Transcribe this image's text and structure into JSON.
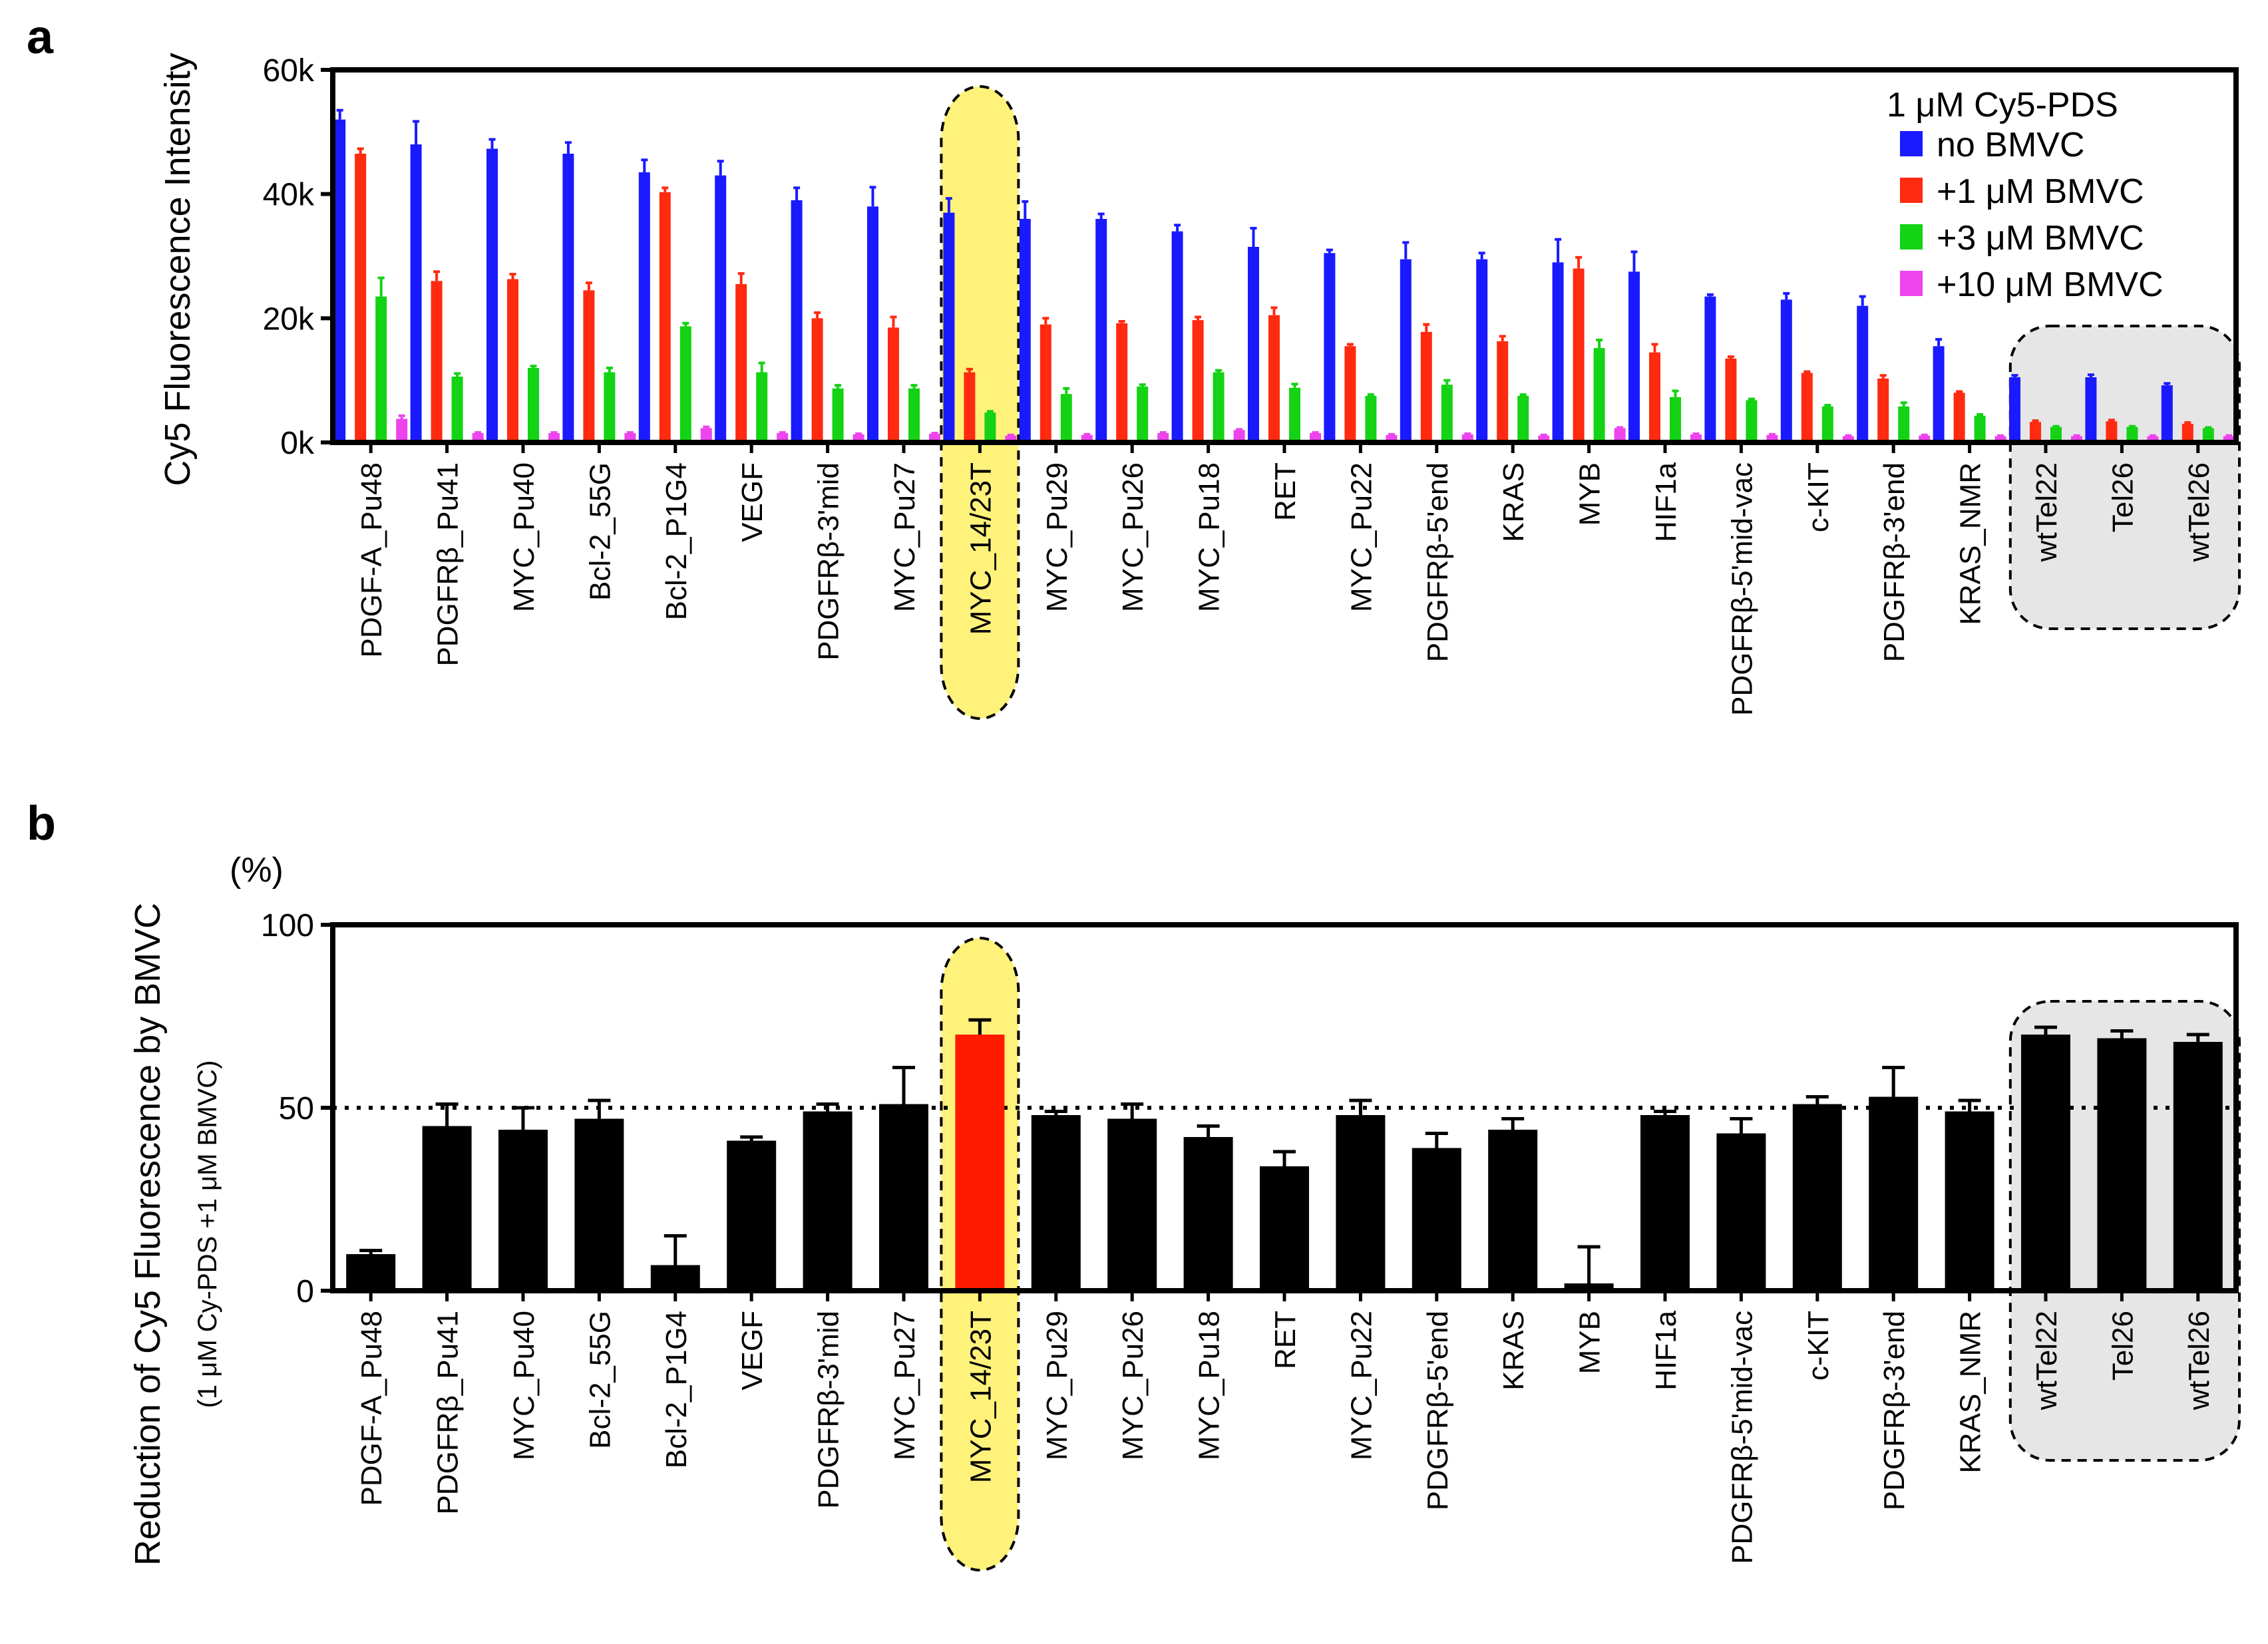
{
  "chart_data": [
    {
      "panel": "a",
      "type": "bar",
      "title": "",
      "ylabel": "Cy5 Fluorescence Intensity",
      "xlabel": "",
      "ylim": [
        0,
        60000
      ],
      "yticks": [
        0,
        20000,
        40000,
        60000
      ],
      "ytick_labels": [
        "0k",
        "20k",
        "40k",
        "60k"
      ],
      "legend_title": "1 μM Cy5-PDS",
      "legend_position": "top-right",
      "categories": [
        "PDGF-A_Pu48",
        "PDGFRβ_Pu41",
        "MYC_Pu40",
        "Bcl-2_55G",
        "Bcl-2_P1G4",
        "VEGF",
        "PDGFRβ-3'mid",
        "MYC_Pu27",
        "MYC_14/23T",
        "MYC_Pu29",
        "MYC_Pu26",
        "MYC_Pu18",
        "RET",
        "MYC_Pu22",
        "PDGFRβ-5'end",
        "KRAS",
        "MYB",
        "HIF1a",
        "PDGFRβ-5'mid-vac",
        "c-KIT",
        "PDGFRβ-3'end",
        "KRAS_NMR",
        "wtTel22",
        "Tel26",
        "wtTel26"
      ],
      "highlight_category": "MYC_14/23T",
      "grouped_categories": [
        "wtTel22",
        "Tel26",
        "wtTel26"
      ],
      "series": [
        {
          "name": "no BMVC",
          "color": "#1a1aff",
          "values": [
            52000,
            48000,
            47300,
            46500,
            43500,
            43000,
            39000,
            38000,
            37000,
            36000,
            36000,
            34000,
            31500,
            30500,
            29500,
            29500,
            29000,
            27500,
            23500,
            23000,
            22000,
            15500,
            10500,
            10500,
            9200
          ],
          "errors": [
            1500,
            3700,
            1500,
            1800,
            2000,
            2300,
            2000,
            3100,
            2300,
            2800,
            800,
            1000,
            3000,
            500,
            2700,
            1000,
            3700,
            3200,
            300,
            1000,
            1500,
            1100,
            300,
            400,
            300
          ]
        },
        {
          "name": "+1 μM BMVC",
          "color": "#ff2a10",
          "values": [
            46500,
            26000,
            26300,
            24500,
            40300,
            25500,
            20000,
            18500,
            11300,
            19000,
            19200,
            19700,
            20500,
            15500,
            17800,
            16300,
            28000,
            14500,
            13500,
            11200,
            10300,
            8000,
            3300,
            3400,
            3000
          ],
          "errors": [
            800,
            1500,
            800,
            1200,
            700,
            1700,
            900,
            1700,
            500,
            1000,
            300,
            500,
            1200,
            300,
            1200,
            800,
            1800,
            1300,
            300,
            200,
            500,
            200,
            200,
            200,
            200
          ]
        },
        {
          "name": "+3 μM BMVC",
          "color": "#14d214",
          "values": [
            23500,
            10600,
            12000,
            11300,
            18700,
            11300,
            8700,
            8700,
            4800,
            7800,
            9000,
            11300,
            8800,
            7500,
            9300,
            7500,
            15200,
            7300,
            6800,
            5800,
            5800,
            4300,
            2500,
            2500,
            2300
          ],
          "errors": [
            3000,
            500,
            300,
            700,
            500,
            1500,
            500,
            500,
            200,
            900,
            300,
            300,
            600,
            200,
            700,
            200,
            1300,
            1000,
            200,
            200,
            600,
            200,
            100,
            100,
            100
          ]
        },
        {
          "name": "+10 μM BMVC",
          "color": "#ee44ee",
          "values": [
            3800,
            1500,
            1500,
            1500,
            2300,
            1500,
            1300,
            1400,
            1100,
            1200,
            1500,
            2000,
            1500,
            1200,
            1300,
            1100,
            2300,
            1300,
            1200,
            1000,
            1100,
            1000,
            1000,
            1000,
            1000
          ],
          "errors": [
            500,
            100,
            100,
            100,
            200,
            100,
            100,
            100,
            100,
            100,
            100,
            100,
            100,
            100,
            100,
            100,
            100,
            100,
            100,
            100,
            100,
            100,
            100,
            100,
            100
          ]
        }
      ]
    },
    {
      "panel": "b",
      "type": "bar",
      "title": "",
      "ylabel": "Reduction of Cy5 Fluorescence by BMVC",
      "ylabel_sub": "(1 μM Cy-PDS +1 μM BMVC)",
      "unit_label": "(%)",
      "xlabel": "",
      "ylim": [
        0,
        100
      ],
      "yticks": [
        0,
        50,
        100
      ],
      "ytick_labels": [
        "0",
        "50",
        "100"
      ],
      "reference_line": 50,
      "categories": [
        "PDGF-A_Pu48",
        "PDGFRβ_Pu41",
        "MYC_Pu40",
        "Bcl-2_55G",
        "Bcl-2_P1G4",
        "VEGF",
        "PDGFRβ-3'mid",
        "MYC_Pu27",
        "MYC_14/23T",
        "MYC_Pu29",
        "MYC_Pu26",
        "MYC_Pu18",
        "RET",
        "MYC_Pu22",
        "PDGFRβ-5'end",
        "KRAS",
        "MYB",
        "HIF1a",
        "PDGFRβ-5'mid-vac",
        "c-KIT",
        "PDGFRβ-3'end",
        "KRAS_NMR",
        "wtTel22",
        "Tel26",
        "wtTel26"
      ],
      "highlight_category": "MYC_14/23T",
      "grouped_categories": [
        "wtTel22",
        "Tel26",
        "wtTel26"
      ],
      "bar_color": "#000000",
      "highlight_color": "#ff1a00",
      "values": [
        10,
        45,
        44,
        47,
        7,
        41,
        49,
        51,
        70,
        48,
        47,
        42,
        34,
        48,
        39,
        44,
        2,
        48,
        43,
        51,
        53,
        49,
        70,
        69,
        68
      ],
      "errors": [
        1,
        6,
        6,
        5,
        8,
        1,
        2,
        10,
        4,
        1,
        4,
        3,
        4,
        4,
        4,
        3,
        10,
        1,
        4,
        2,
        8,
        3,
        2,
        2,
        2
      ]
    }
  ],
  "panels": {
    "a_letter": "a",
    "b_letter": "b"
  }
}
